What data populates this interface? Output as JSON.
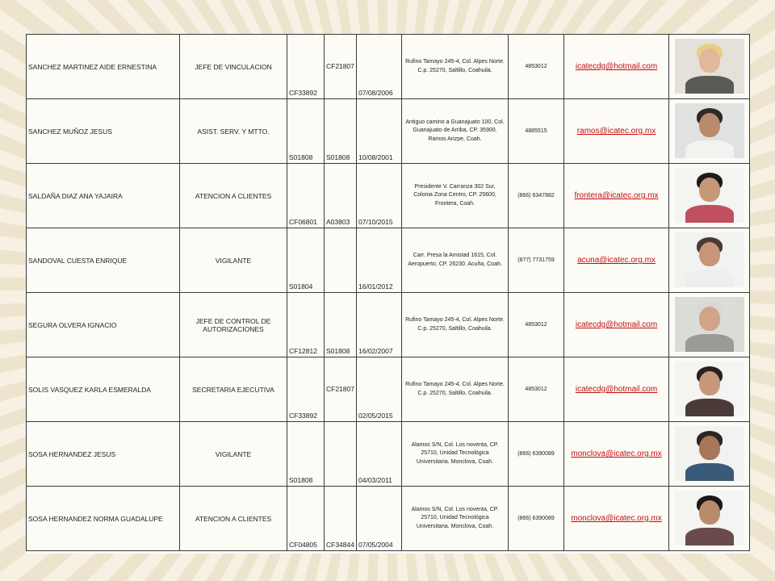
{
  "rows": [
    {
      "nombre": "SANCHEZ MARTINEZ AIDE ERNESTINA",
      "puesto": "JEFE DE VINCULACION",
      "clave1": "CF33892",
      "clave2": "CF21807",
      "clave2_mid": true,
      "fecha": "07/08/2006",
      "domicilio": "Rufino Tamayo 245-4, Col. Alpes Norte. C.p. 25270, Saltillo, Coahuila.",
      "telefono": "4853012",
      "correo": "icatecdg@hotmail.com",
      "foto": {
        "bg": "#e3e1da",
        "skin": "#e0b89a",
        "hair": "#e8cf86",
        "shirt": "#5c5a56"
      }
    },
    {
      "nombre": "SANCHEZ MUÑOZ JESUS",
      "puesto": "ASIST. SERV. Y MTTO.",
      "clave1": "S01808",
      "clave2": "S01808",
      "clave2_mid": false,
      "fecha": "10/08/2001",
      "domicilio": "Antiguo camino a Guanajuato 100, Col. Guanajuato de Arriba, CP. 35900. Ramos Arizpe, Coah.",
      "telefono": "4885515",
      "correo": "ramos@icatec.org.mx",
      "foto": {
        "bg": "#dfe2e0",
        "skin": "#b98a6c",
        "hair": "#2e2a26",
        "shirt": "#f2f2f0"
      }
    },
    {
      "nombre": "SALDAÑA DIAZ ANA YAJAIRA",
      "puesto": "ATENCION A CLIENTES",
      "clave1": "CF06801",
      "clave2": "A03803",
      "clave2_mid": false,
      "fecha": "07/10/2015",
      "domicilio": "Presidente V. Carranza 302 Sur, Colonia Zona Centro, CP. 25600, Frontera, Coah.",
      "telefono": "(866) 6347882",
      "correo": "frontera@icatec.org.mx",
      "foto": {
        "bg": "#f4f4f2",
        "skin": "#c59878",
        "hair": "#1e1a18",
        "shirt": "#c05060"
      }
    },
    {
      "nombre": "SANDOVAL CUESTA ENRIQUE",
      "puesto": "VIGILANTE",
      "clave1": "S01804",
      "clave2": "",
      "clave2_mid": false,
      "fecha": "16/01/2012",
      "domicilio": "Carr. Presa la Amistad 1615, Col. Aeropuerto, CP. 26230. Acuña, Coah.",
      "telefono": "(877) 7731759",
      "correo": "acuna@icatec.org.mx",
      "foto": {
        "bg": "#f2f2f0",
        "skin": "#c8957a",
        "hair": "#4a3a30",
        "shirt": "#eeeeec"
      }
    },
    {
      "nombre": "SEGURA OLVERA IGNACIO",
      "puesto": "JEFE DE CONTROL DE AUTORIZACIONES",
      "clave1": "CF12812",
      "clave2": "S01808",
      "clave2_mid": false,
      "fecha": "16/02/2007",
      "domicilio": "Rufino Tamayo 245-4, Col. Alpes Norte. C.p. 25270, Saltillo, Coahuila.",
      "telefono": "4853012",
      "correo": "icatecdg@hotmail.com",
      "foto": {
        "bg": "#dcdcd6",
        "skin": "#d0a488",
        "hair": "#d8d8d4",
        "shirt": "#9a9a96"
      }
    },
    {
      "nombre": "SOLIS VASQUEZ KARLA ESMERALDA",
      "puesto": "SECRETARIA EJECUTIVA",
      "clave1": "CF33892",
      "clave2": "CF21807",
      "clave2_mid": true,
      "fecha": "02/05/2015",
      "domicilio": "Rufino Tamayo 245-4, Col. Alpes Norte. C.p. 25270, Saltillo, Coahuila.",
      "telefono": "4853012",
      "correo": "icatecdg@hotmail.com",
      "foto": {
        "bg": "#f4f4f2",
        "skin": "#c8987c",
        "hair": "#2a2220",
        "shirt": "#4a3a38"
      }
    },
    {
      "nombre": "SOSA HERNANDEZ JESUS",
      "puesto": "VIGILANTE",
      "clave1": "S01808",
      "clave2": "",
      "clave2_mid": false,
      "fecha": "04/03/2011",
      "domicilio": "Alamos S/N, Col. Los noventa, CP. 25710, Unidad Tecnológica Universitaria. Monclova, Coah.",
      "telefono": "(866) 6390089",
      "correo": "monclova@icatec.org.mx",
      "foto": {
        "bg": "#f2f2f0",
        "skin": "#a87658",
        "hair": "#2a2624",
        "shirt": "#3a5a7a"
      }
    },
    {
      "nombre": "SOSA HERNANDEZ NORMA GUADALUPE",
      "puesto": "ATENCION A CLIENTES",
      "clave1": "CF04805",
      "clave2": "CF34844",
      "clave2_mid": false,
      "fecha": "07/05/2004",
      "domicilio": "Alamos S/N, Col. Los noventa, CP. 25710, Unidad Tecnológica Universitaria. Monclova, Coah.",
      "telefono": "(866) 6390089",
      "correo": "monclova@icatec.org.mx",
      "foto": {
        "bg": "#f4f4f2",
        "skin": "#b98a6c",
        "hair": "#1c1816",
        "shirt": "#6a4a4a"
      }
    }
  ]
}
